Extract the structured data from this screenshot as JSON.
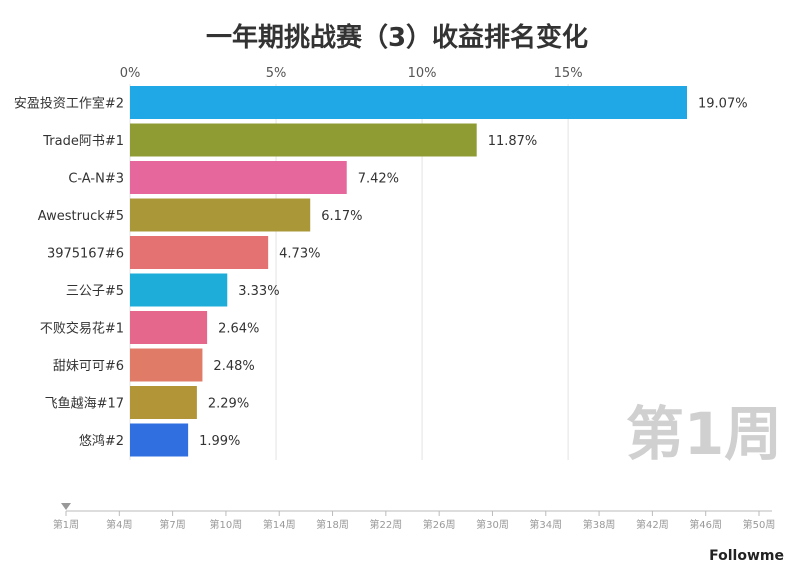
{
  "chart_data": {
    "type": "bar",
    "orientation": "horizontal",
    "title": "一年期挑战赛（3）收益排名变化",
    "categories": [
      "安盈投资工作室#2",
      "Trade阿书#1",
      "C-A-N#3",
      "Awestruck#5",
      "3975167#6",
      "三公子#5",
      "不败交易花#1",
      "甜妹可可#6",
      "飞鱼越海#17",
      "悠鸿#2"
    ],
    "values": [
      19.07,
      11.87,
      7.42,
      6.17,
      4.73,
      3.33,
      2.64,
      2.48,
      2.29,
      1.99
    ],
    "value_labels": [
      "19.07%",
      "11.87%",
      "7.42%",
      "6.17%",
      "4.73%",
      "3.33%",
      "2.64%",
      "2.48%",
      "2.29%",
      "1.99%"
    ],
    "colors": [
      "#1fa7e6",
      "#8f9c34",
      "#e5679b",
      "#aa9838",
      "#e57272",
      "#1eacd8",
      "#e5678c",
      "#e07b68",
      "#b29536",
      "#2f6fe0"
    ],
    "xlim": [
      0,
      19.07
    ],
    "x_ticks": [
      "0%",
      "5%",
      "10%",
      "15%"
    ],
    "x_tick_values": [
      0,
      5,
      10,
      15
    ],
    "xaxis_position": "top",
    "grid": true,
    "period_label": "第1周"
  },
  "timeline": {
    "labels": [
      "第1周",
      "第4周",
      "第7周",
      "第10周",
      "第14周",
      "第18周",
      "第22周",
      "第26周",
      "第30周",
      "第34周",
      "第38周",
      "第42周",
      "第46周",
      "第50周"
    ],
    "current_index": 0
  },
  "brand": "Followme"
}
